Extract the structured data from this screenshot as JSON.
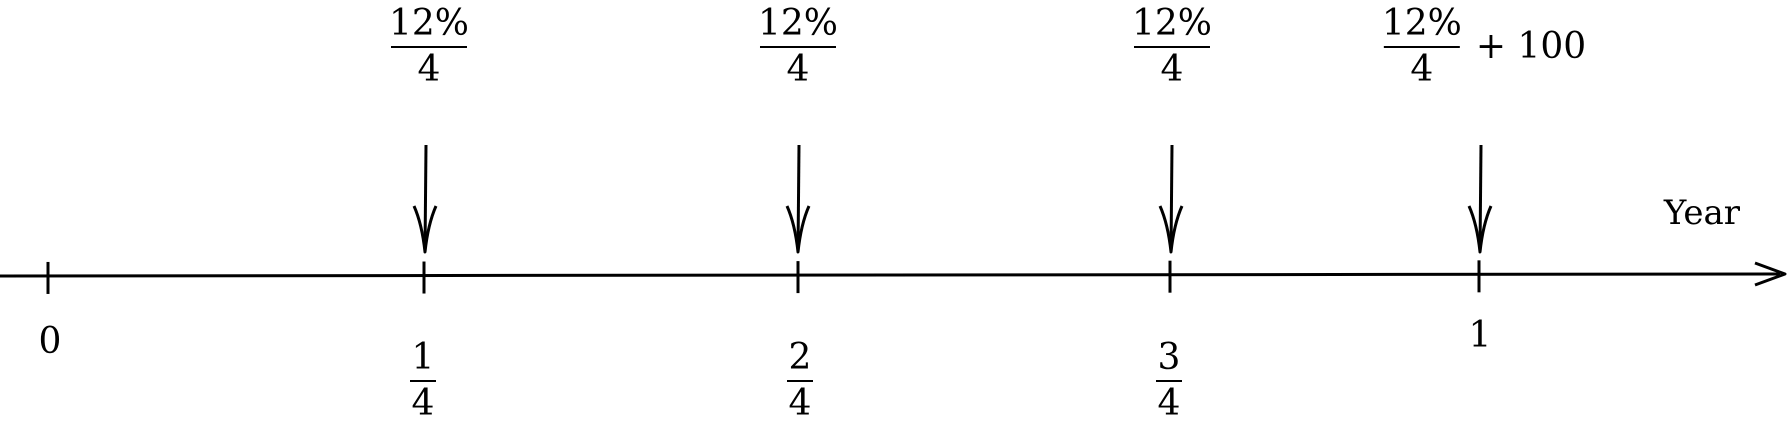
{
  "axis": {
    "title": "Year"
  },
  "ticks": [
    {
      "label": "0",
      "numerator": "",
      "denominator": ""
    },
    {
      "label": "",
      "numerator": "1",
      "denominator": "4"
    },
    {
      "label": "",
      "numerator": "2",
      "denominator": "4"
    },
    {
      "label": "",
      "numerator": "3",
      "denominator": "4"
    },
    {
      "label": "1",
      "numerator": "",
      "denominator": ""
    }
  ],
  "payments": [
    {
      "numerator": "12%",
      "denominator": "4",
      "extra": ""
    },
    {
      "numerator": "12%",
      "denominator": "4",
      "extra": ""
    },
    {
      "numerator": "12%",
      "denominator": "4",
      "extra": ""
    },
    {
      "numerator": "12%",
      "denominator": "4",
      "extra": "+ 100"
    }
  ]
}
